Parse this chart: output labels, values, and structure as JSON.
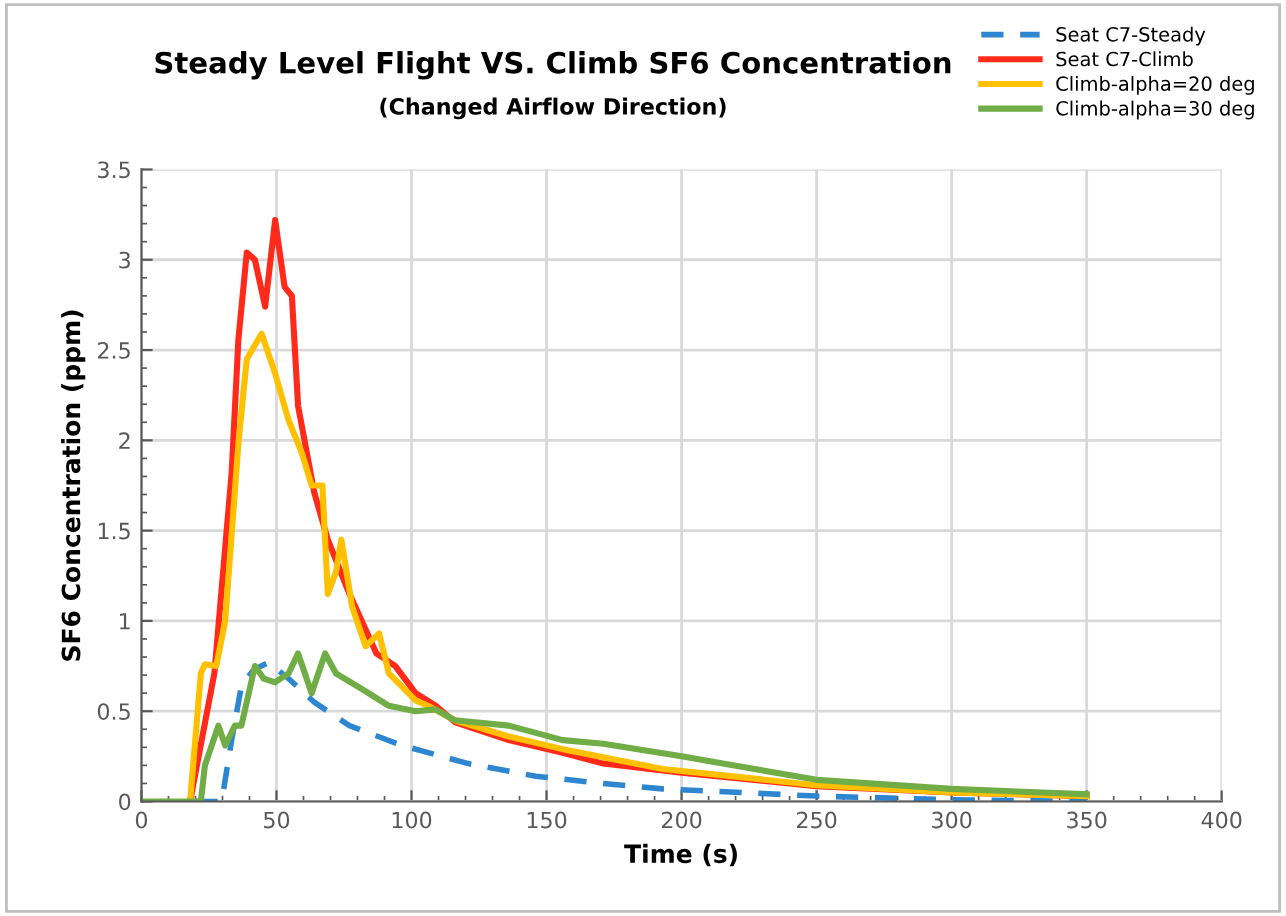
{
  "chart_data": {
    "type": "line",
    "title": "Steady Level Flight VS. Climb SF6 Concentration",
    "subtitle": "(Changed Airflow Direction)",
    "xlabel": "Time (s)",
    "ylabel": "SF6 Concentration (ppm)",
    "xlim": [
      0,
      400
    ],
    "xticks": [
      0,
      50,
      100,
      150,
      200,
      250,
      300,
      350,
      400
    ],
    "ylim": [
      0,
      3.5
    ],
    "yticks": [
      0,
      0.5,
      1,
      1.5,
      2,
      2.5,
      3,
      3.5
    ],
    "grid": true,
    "legend": "top right",
    "marker": "none",
    "series": [
      {
        "name": "Seat C7-Steady",
        "color": "#2e86d1",
        "line_style": "dashed",
        "x": [
          20,
          29.7,
          33.4,
          37,
          41.6,
          47,
          54.5,
          64,
          77,
          96.5,
          121,
          146,
          171,
          193,
          250,
          300,
          350
        ],
        "values": [
          0,
          0,
          0.34,
          0.64,
          0.73,
          0.77,
          0.68,
          0.55,
          0.42,
          0.31,
          0.21,
          0.14,
          0.1,
          0.07,
          0.03,
          0.01,
          0
        ]
      },
      {
        "name": "Seat C7-Climb",
        "color": "#ff2a1a",
        "line_style": "solid",
        "x": [
          18,
          27,
          33.4,
          35.9,
          39,
          42,
          45.8,
          49.5,
          53,
          55.7,
          58,
          64,
          69,
          77,
          87,
          94,
          101.5,
          109,
          116,
          136,
          156,
          171,
          200,
          250,
          300,
          350
        ],
        "values": [
          0,
          0.71,
          1.82,
          2.56,
          3.04,
          3.0,
          2.74,
          3.22,
          2.85,
          2.8,
          2.19,
          1.71,
          1.45,
          1.15,
          0.82,
          0.75,
          0.6,
          0.53,
          0.44,
          0.34,
          0.27,
          0.21,
          0.16,
          0.085,
          0.05,
          0.03
        ]
      },
      {
        "name": "Climb-alpha=20 deg",
        "color": "#ffc000",
        "line_style": "solid",
        "x": [
          18,
          22,
          23.5,
          27.7,
          31,
          36,
          39,
          44.5,
          49.5,
          54.5,
          59.4,
          63,
          67,
          69,
          72,
          74,
          78,
          83,
          88,
          91.6,
          101.5,
          106,
          116,
          136,
          156,
          193,
          250,
          300,
          350
        ],
        "values": [
          0,
          0.71,
          0.76,
          0.75,
          1.0,
          2.0,
          2.45,
          2.59,
          2.37,
          2.11,
          1.93,
          1.75,
          1.75,
          1.15,
          1.27,
          1.45,
          1.08,
          0.86,
          0.93,
          0.71,
          0.56,
          0.53,
          0.45,
          0.36,
          0.29,
          0.18,
          0.09,
          0.05,
          0.03
        ]
      },
      {
        "name": "Climb-alpha=30 deg",
        "color": "#70ad47",
        "line_style": "solid",
        "x": [
          0,
          22,
          23.5,
          28.5,
          31,
          34.6,
          37,
          42,
          45.3,
          49.5,
          54.5,
          58,
          63,
          68,
          72,
          82,
          91.6,
          101.5,
          109,
          116,
          136,
          156,
          171,
          200,
          250,
          300,
          350
        ],
        "values": [
          0,
          0,
          0.2,
          0.42,
          0.31,
          0.42,
          0.42,
          0.75,
          0.68,
          0.66,
          0.71,
          0.82,
          0.6,
          0.82,
          0.71,
          0.62,
          0.53,
          0.5,
          0.51,
          0.45,
          0.42,
          0.34,
          0.32,
          0.25,
          0.12,
          0.07,
          0.04
        ]
      }
    ]
  }
}
